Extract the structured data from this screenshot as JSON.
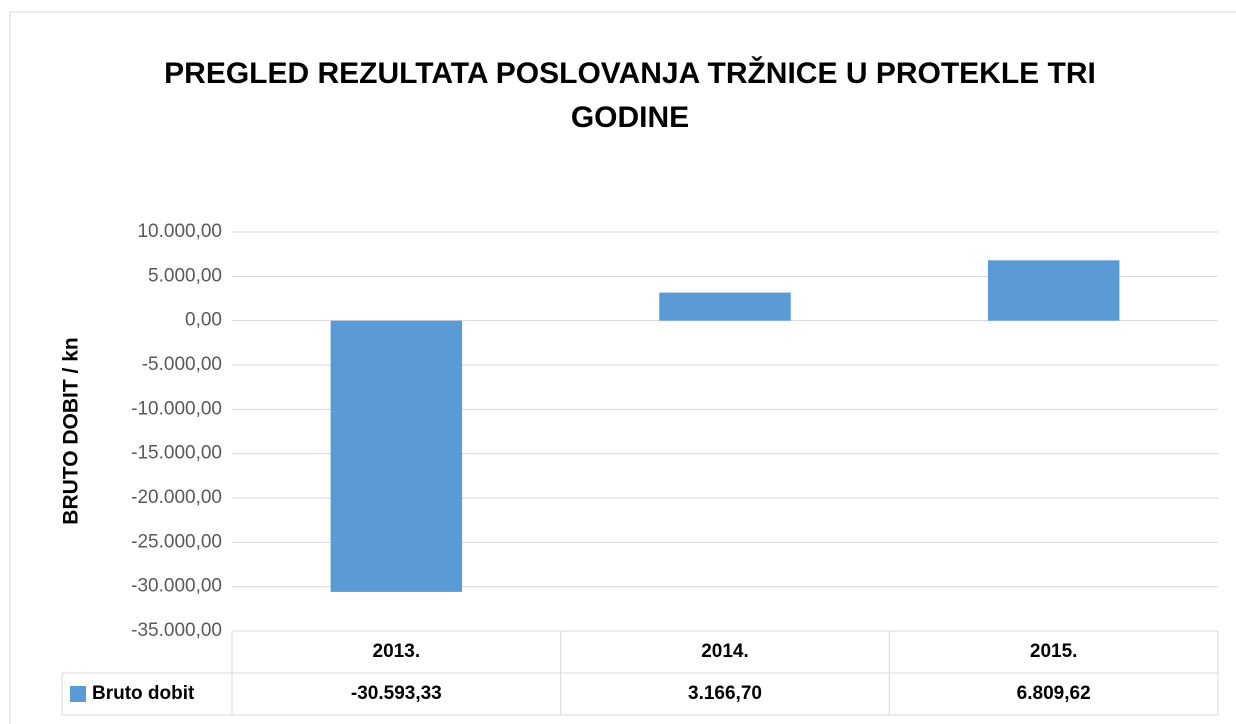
{
  "chart_data": {
    "type": "bar",
    "title": "PREGLED REZULTATA POSLOVANJA TRŽNICE U PROTEKLE TRI GODINE",
    "y_label": "BRUTO DOBIT / kn",
    "categories": [
      "2013.",
      "2014.",
      "2015."
    ],
    "series": [
      {
        "name": "Bruto dobit",
        "color": "#5b9bd5",
        "values": [
          -30593.33,
          3166.7,
          6809.62
        ],
        "value_labels": [
          "-30.593,33",
          "3.166,70",
          "6.809,62"
        ]
      }
    ],
    "ylim": [
      -35000,
      10000
    ],
    "yticks": [
      {
        "value": -35000,
        "label": "-35.000,00"
      },
      {
        "value": -30000,
        "label": "-30.000,00"
      },
      {
        "value": -25000,
        "label": "-25.000,00"
      },
      {
        "value": -20000,
        "label": "-20.000,00"
      },
      {
        "value": -15000,
        "label": "-15.000,00"
      },
      {
        "value": -10000,
        "label": "-10.000,00"
      },
      {
        "value": -5000,
        "label": "-5.000,00"
      },
      {
        "value": 0,
        "label": "0,00"
      },
      {
        "value": 5000,
        "label": "5.000,00"
      },
      {
        "value": 10000,
        "label": "10.000,00"
      }
    ],
    "grid": true,
    "data_table": true
  }
}
